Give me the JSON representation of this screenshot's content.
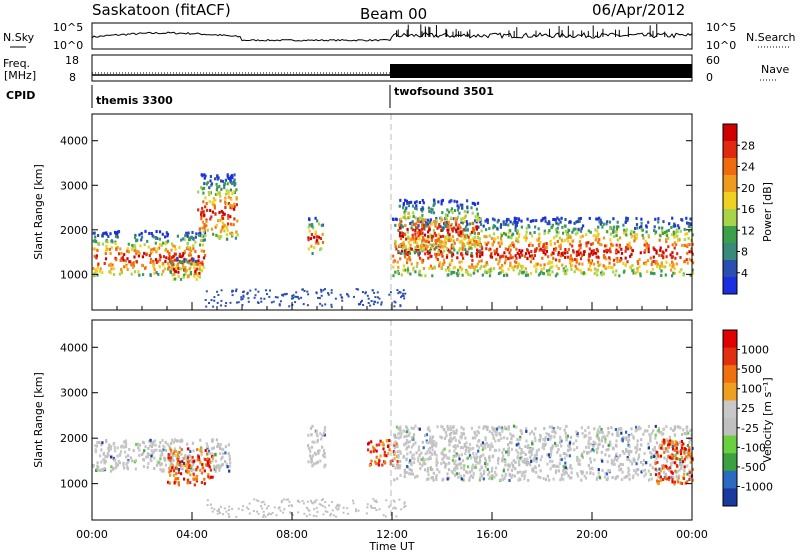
{
  "header": {
    "station": "Saskatoon (fitACF)",
    "beam": "Beam 00",
    "date": "06/Apr/2012"
  },
  "panels": {
    "nsky_label": "N.Sky",
    "nsearch_label": "N.Search",
    "freq_label_1": "Freq.",
    "freq_label_2": "[MHz]",
    "nave_label": "Nave",
    "cpid_label": "CPID",
    "cpid_1": "themis 3300",
    "cpid_2": "twofsound 3501",
    "noise_left_ticks": [
      "10^5",
      "10^0"
    ],
    "noise_right_ticks": [
      "10^5",
      "10^0"
    ],
    "freq_left_ticks": [
      "18",
      "8"
    ],
    "freq_right_ticks": [
      "60",
      "0"
    ]
  },
  "colors": {
    "power_scale": [
      "#1a2fe0",
      "#2a4fb0",
      "#3a8a7a",
      "#3aa04a",
      "#a8d44a",
      "#f0d020",
      "#f09a20",
      "#f06a10",
      "#e02a10",
      "#d00000"
    ],
    "velocity_scale": [
      "#1a3aa0",
      "#2a6ac0",
      "#3aa040",
      "#6ad040",
      "#c0c0c0",
      "#c8c8c8",
      "#f0a020",
      "#f07010",
      "#e03010",
      "#e00000"
    ]
  },
  "chart_data": [
    {
      "type": "heatmap",
      "title": "Power",
      "ylabel": "Slant Range [km]",
      "colorbar_label": "Power [dB]",
      "colorbar_ticks": [
        "28",
        "24",
        "20",
        "16",
        "12",
        "8",
        "4"
      ],
      "yticks": [
        "4000",
        "3000",
        "2000",
        "1000"
      ],
      "ylim": [
        200,
        4600
      ],
      "xlim": [
        "00:00",
        "24:00"
      ],
      "echo_bands": [
        {
          "t_start": 0.0,
          "t_end": 4.5,
          "range_start": 1000,
          "range_end": 2000
        },
        {
          "t_start": 3.0,
          "t_end": 4.3,
          "range_start": 900,
          "range_end": 1400
        },
        {
          "t_start": 4.2,
          "t_end": 5.8,
          "range_start": 1800,
          "range_end": 3300
        },
        {
          "t_start": 8.6,
          "t_end": 9.2,
          "range_start": 1500,
          "range_end": 2300
        },
        {
          "t_start": 12.0,
          "t_end": 24.0,
          "range_start": 1000,
          "range_end": 2300
        },
        {
          "t_start": 12.2,
          "t_end": 15.5,
          "range_start": 1500,
          "range_end": 2700
        }
      ]
    },
    {
      "type": "heatmap",
      "title": "Velocity",
      "ylabel": "Slant Range [km]",
      "xlabel": "Time UT",
      "colorbar_label": "Velocity [m s⁻¹]",
      "colorbar_ticks": [
        "1000",
        "500",
        "100",
        "25",
        "-25",
        "-100",
        "-500",
        "-1000"
      ],
      "yticks": [
        "4000",
        "3000",
        "2000",
        "1000"
      ],
      "xticks": [
        "00:00",
        "04:00",
        "08:00",
        "12:00",
        "16:00",
        "20:00",
        "00:00"
      ],
      "ylim": [
        200,
        4600
      ],
      "xlim": [
        "00:00",
        "24:00"
      ],
      "echo_bands": [
        {
          "t_start": 0.0,
          "t_end": 5.5,
          "range_start": 1300,
          "range_end": 2000
        },
        {
          "t_start": 3.0,
          "t_end": 4.8,
          "range_start": 1000,
          "range_end": 1800
        },
        {
          "t_start": 8.6,
          "t_end": 9.3,
          "range_start": 1400,
          "range_end": 2300
        },
        {
          "t_start": 11.0,
          "t_end": 12.2,
          "range_start": 1400,
          "range_end": 2000
        },
        {
          "t_start": 12.0,
          "t_end": 24.0,
          "range_start": 1100,
          "range_end": 2300
        },
        {
          "t_start": 22.5,
          "t_end": 24.0,
          "range_start": 1000,
          "range_end": 2000
        }
      ]
    }
  ]
}
